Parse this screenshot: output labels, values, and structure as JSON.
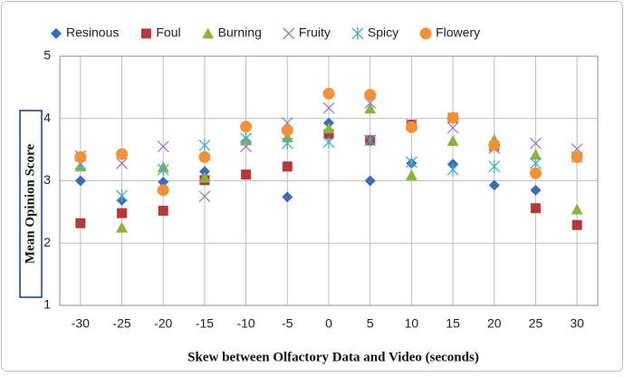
{
  "chart_data": {
    "type": "scatter",
    "x_label": "Skew between Olfactory Data and Video (seconds)",
    "y_label": "Mean Opinion Score",
    "x": [
      -30,
      -25,
      -20,
      -15,
      -10,
      -5,
      0,
      5,
      10,
      15,
      20,
      25,
      30
    ],
    "xlim": [
      -32.5,
      32.5
    ],
    "xticks": [
      -30,
      -25,
      -20,
      -15,
      -10,
      -5,
      0,
      5,
      10,
      15,
      20,
      25,
      30
    ],
    "ylim": [
      1,
      5
    ],
    "yticks": [
      1,
      2,
      3,
      4,
      5
    ],
    "grid": true,
    "legend": "top",
    "series": [
      {
        "name": "Resinous",
        "color": "#3d6cb5",
        "marker": "diamond",
        "values": [
          3.0,
          2.69,
          2.98,
          3.15,
          3.63,
          2.74,
          3.93,
          3.0,
          3.28,
          3.27,
          2.93,
          2.85,
          3.38
        ]
      },
      {
        "name": "Foul",
        "color": "#b23a3a",
        "marker": "square",
        "values": [
          2.32,
          2.48,
          2.52,
          3.01,
          3.1,
          3.23,
          3.75,
          3.65,
          3.9,
          4.01,
          3.56,
          2.56,
          2.29
        ]
      },
      {
        "name": "Burning",
        "color": "#8cb340",
        "marker": "triangle",
        "values": [
          3.23,
          2.25,
          3.22,
          3.05,
          3.65,
          3.7,
          3.84,
          4.16,
          3.09,
          3.64,
          3.66,
          3.42,
          2.54
        ]
      },
      {
        "name": "Fruity",
        "color": "#9b7fc0",
        "marker": "cross",
        "values": [
          3.4,
          3.28,
          3.55,
          2.75,
          3.55,
          3.93,
          4.17,
          4.25,
          3.9,
          3.85,
          3.52,
          3.6,
          3.51
        ]
      },
      {
        "name": "Spicy",
        "color": "#4bacc6",
        "marker": "asterisk",
        "values": [
          3.27,
          2.76,
          3.18,
          3.57,
          3.68,
          3.6,
          3.62,
          3.65,
          3.3,
          3.18,
          3.23,
          3.28,
          3.38
        ]
      },
      {
        "name": "Flowery",
        "color": "#f0913b",
        "marker": "circle",
        "values": [
          3.38,
          3.43,
          2.85,
          3.38,
          3.87,
          3.81,
          4.4,
          4.38,
          3.86,
          4.01,
          3.57,
          3.12,
          3.38
        ]
      }
    ]
  }
}
